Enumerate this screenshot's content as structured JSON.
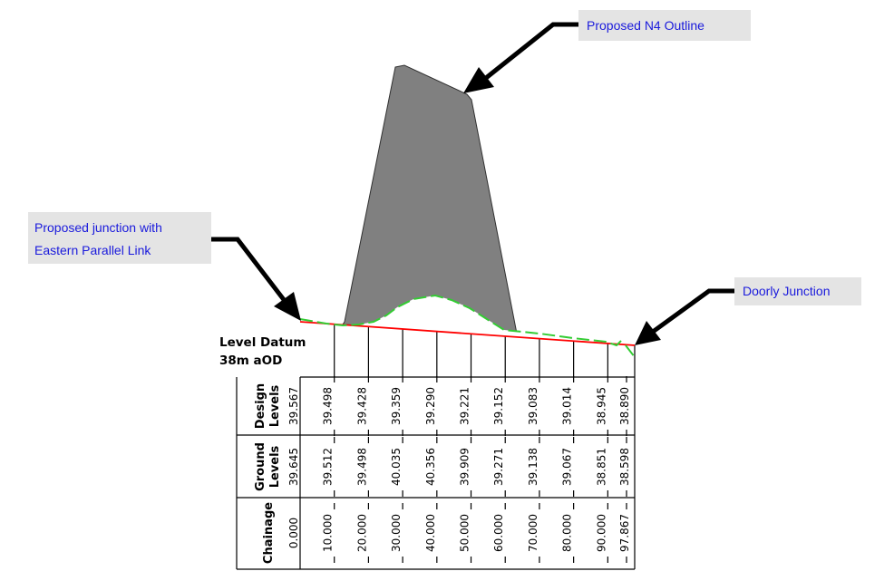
{
  "callouts": {
    "n4_outline": "Proposed N4 Outline",
    "junction_line1": "Proposed junction with",
    "junction_line2": "Eastern Parallel Link",
    "doorly": "Doorly Junction"
  },
  "datum": {
    "line1": "Level Datum",
    "line2": "38m aOD"
  },
  "rows": {
    "design": [
      "Design",
      "Levels"
    ],
    "ground": [
      "Ground",
      "Levels"
    ],
    "chainage": [
      "Chainage"
    ]
  },
  "chainage": [
    "0.000",
    "10.000",
    "20.000",
    "30.000",
    "40.000",
    "50.000",
    "60.000",
    "70.000",
    "80.000",
    "90.000",
    "97.867"
  ],
  "design_levels": [
    "39.567",
    "39.498",
    "39.428",
    "39.359",
    "39.290",
    "39.221",
    "39.152",
    "39.083",
    "39.014",
    "38.945",
    "38.890"
  ],
  "ground_levels": [
    "39.645",
    "39.512",
    "39.498",
    "40.035",
    "40.356",
    "39.909",
    "39.271",
    "39.138",
    "39.067",
    "38.851",
    "38.598"
  ],
  "colors": {
    "design_line": "#ff0000",
    "ground_line": "#33cc33",
    "n4_fill": "#808080",
    "callout_bg": "#e4e4e4",
    "callout_text": "#1a1adc"
  }
}
